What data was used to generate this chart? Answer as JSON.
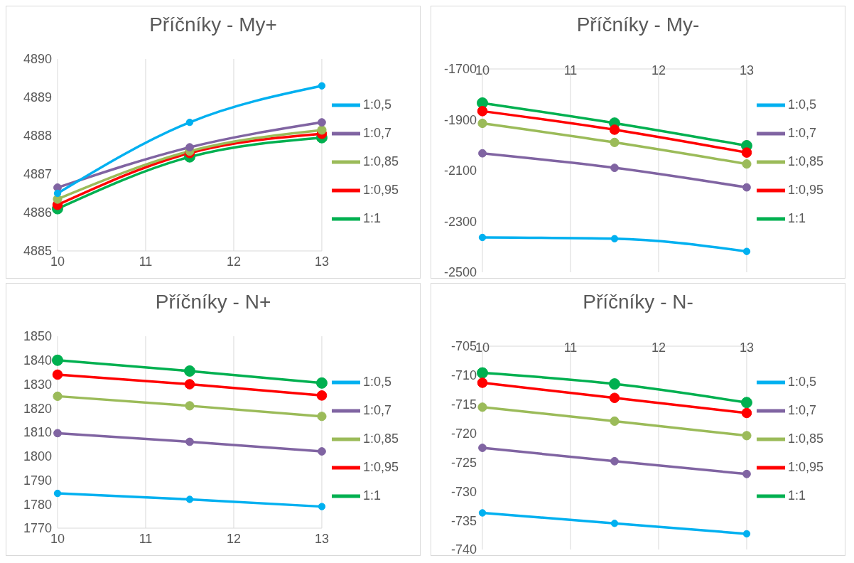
{
  "chart_data": [
    {
      "type": "line",
      "title": "Příčníky - My+",
      "x": [
        10,
        11.5,
        13
      ],
      "xlim": [
        10,
        13
      ],
      "xticks": [
        10,
        11,
        12,
        13
      ],
      "ylim": [
        4885,
        4890
      ],
      "yticks": [
        4885,
        4886,
        4887,
        4888,
        4889,
        4890
      ],
      "grid": "x",
      "legend": "right",
      "marker": "circle",
      "line_style": "solid",
      "series": [
        {
          "name": "1:1",
          "color": "#00b050",
          "values": [
            4886.1,
            4887.45,
            4887.95
          ]
        },
        {
          "name": "1:0,95",
          "color": "#ff0000",
          "values": [
            4886.2,
            4887.55,
            4888.05
          ]
        },
        {
          "name": "1:0,85",
          "color": "#9bbb59",
          "values": [
            4886.35,
            4887.6,
            4888.15
          ]
        },
        {
          "name": "1:0,7",
          "color": "#8064a2",
          "values": [
            4886.65,
            4887.7,
            4888.35
          ]
        },
        {
          "name": "1:0,5",
          "color": "#00b0f0",
          "values": [
            4886.5,
            4888.35,
            4889.3
          ]
        }
      ]
    },
    {
      "type": "line",
      "title": "Příčníky - My-",
      "x": [
        10,
        11.5,
        13
      ],
      "xlim": [
        10,
        13
      ],
      "xticks": [
        10,
        11,
        12,
        13
      ],
      "ylim": [
        -2500,
        -1700
      ],
      "yticks": [
        -2500,
        -2300,
        -2100,
        -1900,
        -1700
      ],
      "grid": "x",
      "legend": "right",
      "marker": "circle",
      "line_style": "solid",
      "series": [
        {
          "name": "1:1",
          "color": "#00b050",
          "values": [
            -1834,
            -1913,
            -2002
          ]
        },
        {
          "name": "1:0,95",
          "color": "#ff0000",
          "values": [
            -1866,
            -1939,
            -2029
          ]
        },
        {
          "name": "1:0,85",
          "color": "#9bbb59",
          "values": [
            -1914,
            -1989,
            -2074
          ]
        },
        {
          "name": "1:0,7",
          "color": "#8064a2",
          "values": [
            -2032,
            -2089,
            -2166
          ]
        },
        {
          "name": "1:0,5",
          "color": "#00b0f0",
          "values": [
            -2363,
            -2368,
            -2418
          ]
        }
      ]
    },
    {
      "type": "line",
      "title": "Příčníky - N+",
      "x": [
        10,
        11.5,
        13
      ],
      "xlim": [
        10,
        13
      ],
      "xticks": [
        10,
        11,
        12,
        13
      ],
      "ylim": [
        1770,
        1850
      ],
      "yticks": [
        1770,
        1780,
        1790,
        1800,
        1810,
        1820,
        1830,
        1840,
        1850
      ],
      "grid": "x",
      "legend": "right",
      "marker": "circle",
      "line_style": "solid",
      "series": [
        {
          "name": "1:1",
          "color": "#00b050",
          "values": [
            1840,
            1835.5,
            1830.5
          ]
        },
        {
          "name": "1:0,95",
          "color": "#ff0000",
          "values": [
            1834,
            1830,
            1825.3
          ]
        },
        {
          "name": "1:0,85",
          "color": "#9bbb59",
          "values": [
            1825,
            1821,
            1816.6
          ]
        },
        {
          "name": "1:0,7",
          "color": "#8064a2",
          "values": [
            1809.6,
            1806,
            1802
          ]
        },
        {
          "name": "1:0,5",
          "color": "#00b0f0",
          "values": [
            1784.5,
            1782,
            1779
          ]
        }
      ]
    },
    {
      "type": "line",
      "title": "Příčníky - N-",
      "x": [
        10,
        11.5,
        13
      ],
      "xlim": [
        10,
        13
      ],
      "xticks": [
        10,
        11,
        12,
        13
      ],
      "ylim": [
        -740,
        -705
      ],
      "yticks": [
        -740,
        -735,
        -730,
        -725,
        -720,
        -715,
        -710,
        -705
      ],
      "grid": "x",
      "legend": "right",
      "marker": "circle",
      "line_style": "solid",
      "series": [
        {
          "name": "1:1",
          "color": "#00b050",
          "values": [
            -709.6,
            -711.5,
            -714.7
          ]
        },
        {
          "name": "1:0,95",
          "color": "#ff0000",
          "values": [
            -711.3,
            -713.9,
            -716.5
          ]
        },
        {
          "name": "1:0,85",
          "color": "#9bbb59",
          "values": [
            -715.5,
            -717.9,
            -720.4
          ]
        },
        {
          "name": "1:0,7",
          "color": "#8064a2",
          "values": [
            -722.5,
            -724.8,
            -727
          ]
        },
        {
          "name": "1:0,5",
          "color": "#00b0f0",
          "values": [
            -733.7,
            -735.5,
            -737.3
          ]
        }
      ]
    }
  ]
}
